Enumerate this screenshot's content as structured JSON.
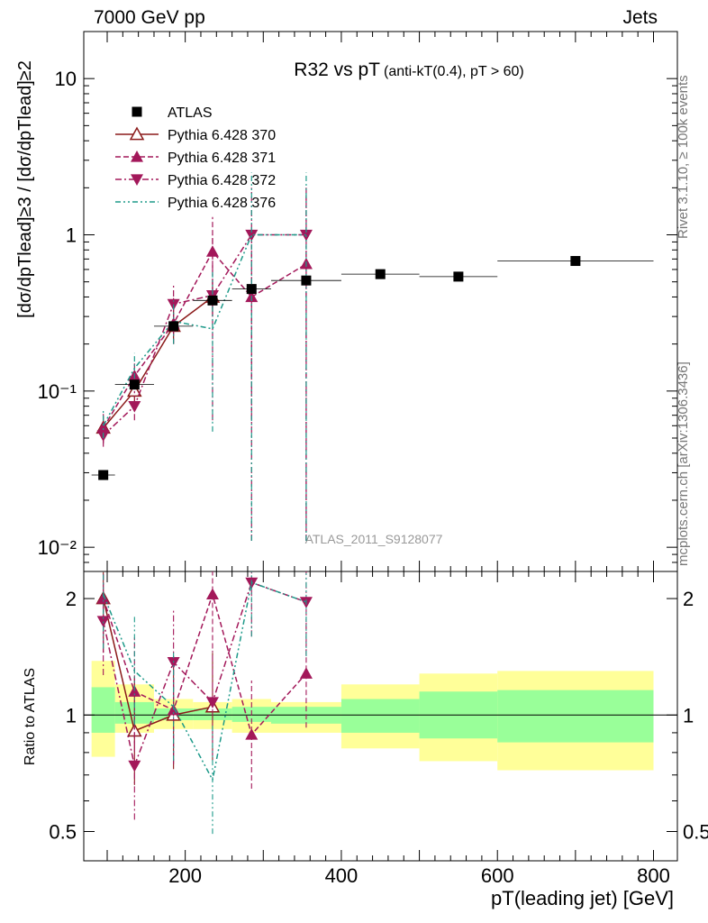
{
  "header": {
    "left": "7000 GeV pp",
    "right": "Jets"
  },
  "side_labels": {
    "rivet": "Rivet 3.1.10, ≥ 100k events",
    "mcplots": "mcplots.cern.ch [arXiv:1306.3436]"
  },
  "chart_data": [
    {
      "type": "scatter",
      "panel": "main",
      "title": "R32 vs pT",
      "subtitle": "(anti-kT(0.4), pT > 60)",
      "xlabel": "pT(leading jet) [GeV]",
      "ylabel": "[dσ/dpTlead]≥3 / [dσ/dpTlead]≥2",
      "ylim": [
        0.007,
        20
      ],
      "xlim": [
        70,
        830
      ],
      "yscale": "log",
      "y_ticks": [
        "10⁻²",
        "10⁻¹",
        "1",
        "10"
      ],
      "x_ticks": [
        "200",
        "400",
        "600",
        "800"
      ],
      "watermark": "ATLAS_2011_S9128077",
      "legend_position": "top-left",
      "colors": {
        "data": "#000000",
        "py370": "#8b1a1a",
        "py371": "#a3185a",
        "py372": "#a3185a",
        "py376": "#1e9a8a"
      },
      "series": [
        {
          "name": "ATLAS",
          "marker": "square",
          "x": [
            95,
            135,
            185,
            235,
            285,
            355,
            450,
            550,
            700
          ],
          "y": [
            0.029,
            0.11,
            0.26,
            0.38,
            0.45,
            0.51,
            0.56,
            0.54,
            0.68
          ],
          "xerr": [
            [
              80,
              110
            ],
            [
              110,
              160
            ],
            [
              160,
              210
            ],
            [
              210,
              260
            ],
            [
              260,
              310
            ],
            [
              310,
              400
            ],
            [
              400,
              500
            ],
            [
              500,
              600
            ],
            [
              600,
              800
            ]
          ]
        },
        {
          "name": "Pythia 6.428 370",
          "marker": "triangle-up-open",
          "line": "solid",
          "x": [
            95,
            135,
            185,
            235
          ],
          "y": [
            0.058,
            0.1,
            0.26,
            0.4
          ],
          "yerr": [
            [
              0.047,
              0.069
            ],
            [
              0.085,
              0.115
            ],
            [
              0.2,
              0.33
            ],
            [
              0.3,
              0.5
            ]
          ]
        },
        {
          "name": "Pythia 6.428 371",
          "marker": "triangle-up",
          "line": "dashed",
          "x": [
            95,
            135,
            185,
            235,
            285,
            355
          ],
          "y": [
            0.058,
            0.125,
            0.27,
            0.78,
            0.4,
            0.65
          ],
          "yerr": [
            [
              0.046,
              0.072
            ],
            [
              0.11,
              0.15
            ],
            [
              0.2,
              0.4
            ],
            [
              0.3,
              1.3
            ],
            [
              0.065,
              1.0
            ],
            [
              0.011,
              2.0
            ]
          ]
        },
        {
          "name": "Pythia 6.428 372",
          "marker": "triangle-down",
          "line": "dash-dot",
          "x": [
            95,
            135,
            185,
            235,
            285,
            355
          ],
          "y": [
            0.052,
            0.08,
            0.36,
            0.41,
            1.0,
            1.0
          ],
          "yerr": [
            [
              0.044,
              0.06
            ],
            [
              0.065,
              0.1
            ],
            [
              0.27,
              0.48
            ],
            [
              0.065,
              1.0
            ],
            [
              0.011,
              2.0
            ],
            [
              0.011,
              2.0
            ]
          ]
        },
        {
          "name": "Pythia 6.428 376",
          "marker": "none",
          "line": "dash-dot-dot",
          "x": [
            95,
            135,
            185,
            235,
            285,
            355
          ],
          "y": [
            0.06,
            0.14,
            0.28,
            0.25,
            1.0,
            1.0
          ],
          "yerr": [
            [
              0.05,
              0.075
            ],
            [
              0.12,
              0.175
            ],
            [
              0.2,
              0.38
            ],
            [
              0.055,
              0.6
            ],
            [
              0.011,
              2.5
            ],
            [
              0.011,
              2.5
            ]
          ]
        }
      ]
    },
    {
      "type": "scatter",
      "panel": "ratio",
      "ylabel": "Ratio to ATLAS",
      "yscale": "log",
      "ylim": [
        0.42,
        2.35
      ],
      "y_ticks": [
        "0.5",
        "1",
        "2"
      ],
      "bands": {
        "x_edges": [
          80,
          110,
          160,
          210,
          260,
          310,
          400,
          500,
          600,
          800
        ],
        "yellow": [
          [
            0.78,
            1.38
          ],
          [
            0.9,
            1.2
          ],
          [
            0.92,
            1.1
          ],
          [
            0.92,
            1.08
          ],
          [
            0.9,
            1.1
          ],
          [
            0.9,
            1.08
          ],
          [
            0.82,
            1.2
          ],
          [
            0.76,
            1.28
          ],
          [
            0.72,
            1.3
          ]
        ],
        "green": [
          [
            0.9,
            1.18
          ],
          [
            0.95,
            1.08
          ],
          [
            0.97,
            1.04
          ],
          [
            0.97,
            1.04
          ],
          [
            0.96,
            1.05
          ],
          [
            0.95,
            1.05
          ],
          [
            0.9,
            1.1
          ],
          [
            0.87,
            1.15
          ],
          [
            0.85,
            1.16
          ]
        ]
      },
      "series": [
        {
          "name": "Pythia 6.428 370",
          "x": [
            95,
            135,
            185,
            235
          ],
          "y": [
            2.0,
            0.91,
            1.0,
            1.05
          ]
        },
        {
          "name": "Pythia 6.428 371",
          "x": [
            95,
            135,
            185,
            235,
            285,
            355
          ],
          "y": [
            2.0,
            1.15,
            1.03,
            2.05,
            0.89,
            1.28
          ]
        },
        {
          "name": "Pythia 6.428 372",
          "x": [
            95,
            135,
            185,
            235,
            285,
            355
          ],
          "y": [
            1.75,
            0.74,
            1.37,
            1.08,
            2.2,
            1.96
          ]
        },
        {
          "name": "Pythia 6.428 376",
          "x": [
            95,
            135,
            185,
            235,
            285,
            355
          ],
          "y": [
            2.05,
            1.3,
            1.05,
            0.68,
            2.2,
            1.96
          ]
        }
      ]
    }
  ]
}
